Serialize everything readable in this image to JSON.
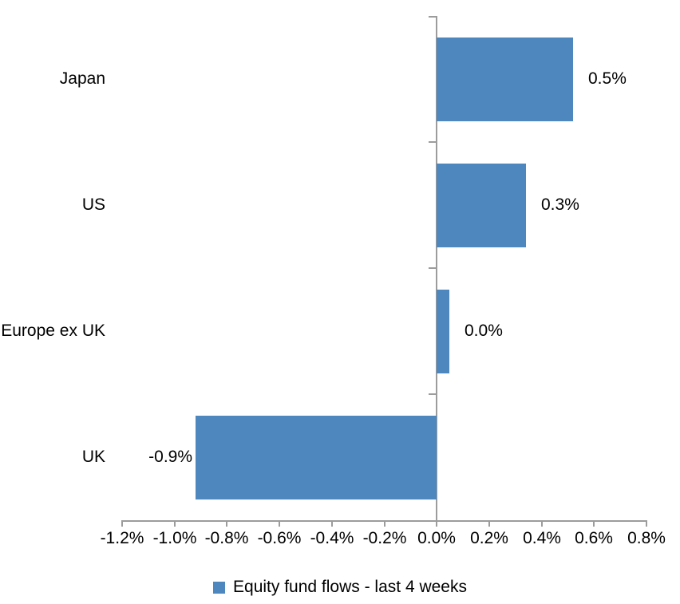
{
  "chart_data": {
    "type": "bar",
    "orientation": "horizontal",
    "title": "",
    "xlabel": "",
    "ylabel": "",
    "categories": [
      "Japan",
      "US",
      "Europe ex UK",
      "UK"
    ],
    "series": [
      {
        "name": "Equity fund flows - last 4 weeks",
        "values": [
          0.52,
          0.34,
          0.05,
          -0.92
        ],
        "data_labels": [
          "0.5%",
          "0.3%",
          "0.0%",
          "-0.9%"
        ],
        "color": "#4D87BE"
      }
    ],
    "xlim": [
      -1.2,
      0.8
    ],
    "x_tick_values": [
      -1.2,
      -1.0,
      -0.8,
      -0.6,
      -0.4,
      -0.2,
      0.0,
      0.2,
      0.4,
      0.6,
      0.8
    ],
    "x_tick_labels": [
      "-1.2%",
      "-1.0%",
      "-0.8%",
      "-0.6%",
      "-0.4%",
      "-0.2%",
      "0.0%",
      "0.2%",
      "0.4%",
      "0.6%",
      "0.8%"
    ],
    "grid": false,
    "legend": {
      "position": "bottom-center",
      "items": [
        {
          "label": "Equity fund flows - last 4 weeks",
          "color": "#4D87BE"
        }
      ]
    },
    "axis_color": "#9C9C9C",
    "text_color": "#000000",
    "background": "#FFFFFF"
  }
}
